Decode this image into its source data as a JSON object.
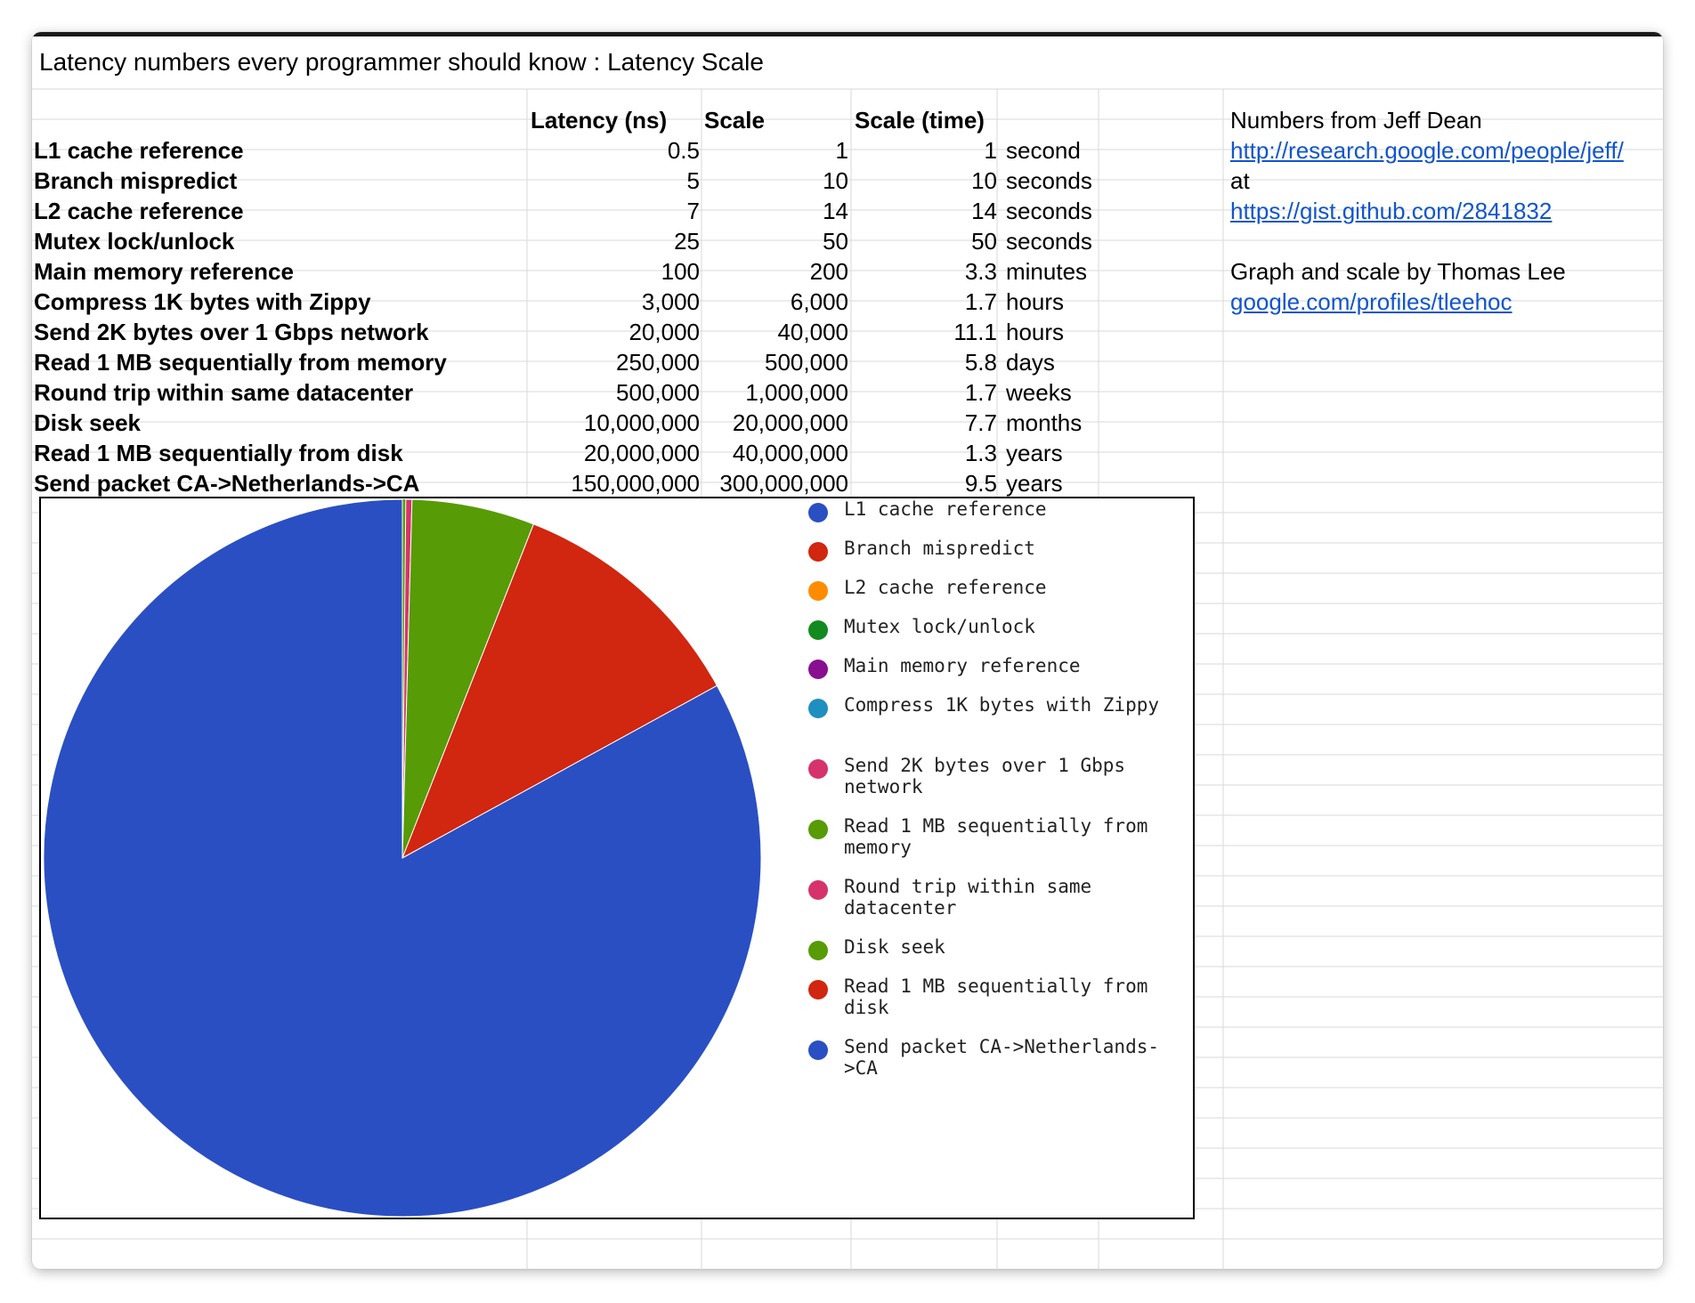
{
  "title": "Latency numbers every programmer should know : Latency Scale",
  "headers": {
    "latency": "Latency (ns)",
    "scale": "Scale",
    "scale_time": "Scale (time)"
  },
  "rows": [
    {
      "label": "L1 cache reference",
      "latency": "0.5",
      "scale": "1",
      "time": "1",
      "unit": "second"
    },
    {
      "label": "Branch mispredict",
      "latency": "5",
      "scale": "10",
      "time": "10",
      "unit": "seconds"
    },
    {
      "label": "L2 cache reference",
      "latency": "7",
      "scale": "14",
      "time": "14",
      "unit": "seconds"
    },
    {
      "label": "Mutex lock/unlock",
      "latency": "25",
      "scale": "50",
      "time": "50",
      "unit": "seconds"
    },
    {
      "label": "Main memory reference",
      "latency": "100",
      "scale": "200",
      "time": "3.3",
      "unit": "minutes"
    },
    {
      "label": "Compress 1K bytes with Zippy",
      "latency": "3,000",
      "scale": "6,000",
      "time": "1.7",
      "unit": "hours"
    },
    {
      "label": "Send 2K bytes over 1 Gbps network",
      "latency": "20,000",
      "scale": "40,000",
      "time": "11.1",
      "unit": "hours"
    },
    {
      "label": "Read 1 MB sequentially from memory",
      "latency": "250,000",
      "scale": "500,000",
      "time": "5.8",
      "unit": "days"
    },
    {
      "label": "Round trip within same datacenter",
      "latency": "500,000",
      "scale": "1,000,000",
      "time": "1.7",
      "unit": "weeks"
    },
    {
      "label": "Disk seek",
      "latency": "10,000,000",
      "scale": "20,000,000",
      "time": "7.7",
      "unit": "months"
    },
    {
      "label": "Read 1 MB sequentially from disk",
      "latency": "20,000,000",
      "scale": "40,000,000",
      "time": "1.3",
      "unit": "years"
    },
    {
      "label": "Send packet CA->Netherlands->CA",
      "latency": "150,000,000",
      "scale": "300,000,000",
      "time": "9.5",
      "unit": "years"
    }
  ],
  "notes": {
    "numbers_from": "Numbers from Jeff Dean",
    "link1": "http://research.google.com/people/jeff/",
    "at": "at",
    "link2": "https://gist.github.com/2841832",
    "graph_by": "Graph and scale by Thomas Lee",
    "link3": "google.com/profiles/tleehoc"
  },
  "chart_data": {
    "type": "pie",
    "categories": [
      "L1 cache reference",
      "Branch mispredict",
      "L2 cache reference",
      "Mutex lock/unlock",
      "Main memory reference",
      "Compress 1K bytes with Zippy",
      "Send 2K bytes over 1 Gbps network",
      "Read 1 MB sequentially from memory",
      "Round trip within same datacenter",
      "Disk seek",
      "Read 1 MB sequentially from disk",
      "Send packet CA->Netherlands->CA"
    ],
    "values": [
      0.5,
      5,
      7,
      25,
      100,
      3000,
      20000,
      250000,
      500000,
      10000000,
      20000000,
      150000000
    ],
    "colors": [
      "#2a4fc3",
      "#d1260f",
      "#ff8c00",
      "#138a1f",
      "#880f8f",
      "#1f8fbf",
      "#d6336c",
      "#579b06",
      "#d6336c",
      "#579b06",
      "#d1260f",
      "#2a4fc3"
    ],
    "legend_position": "right",
    "start_angle": "top",
    "direction": "clockwise"
  }
}
